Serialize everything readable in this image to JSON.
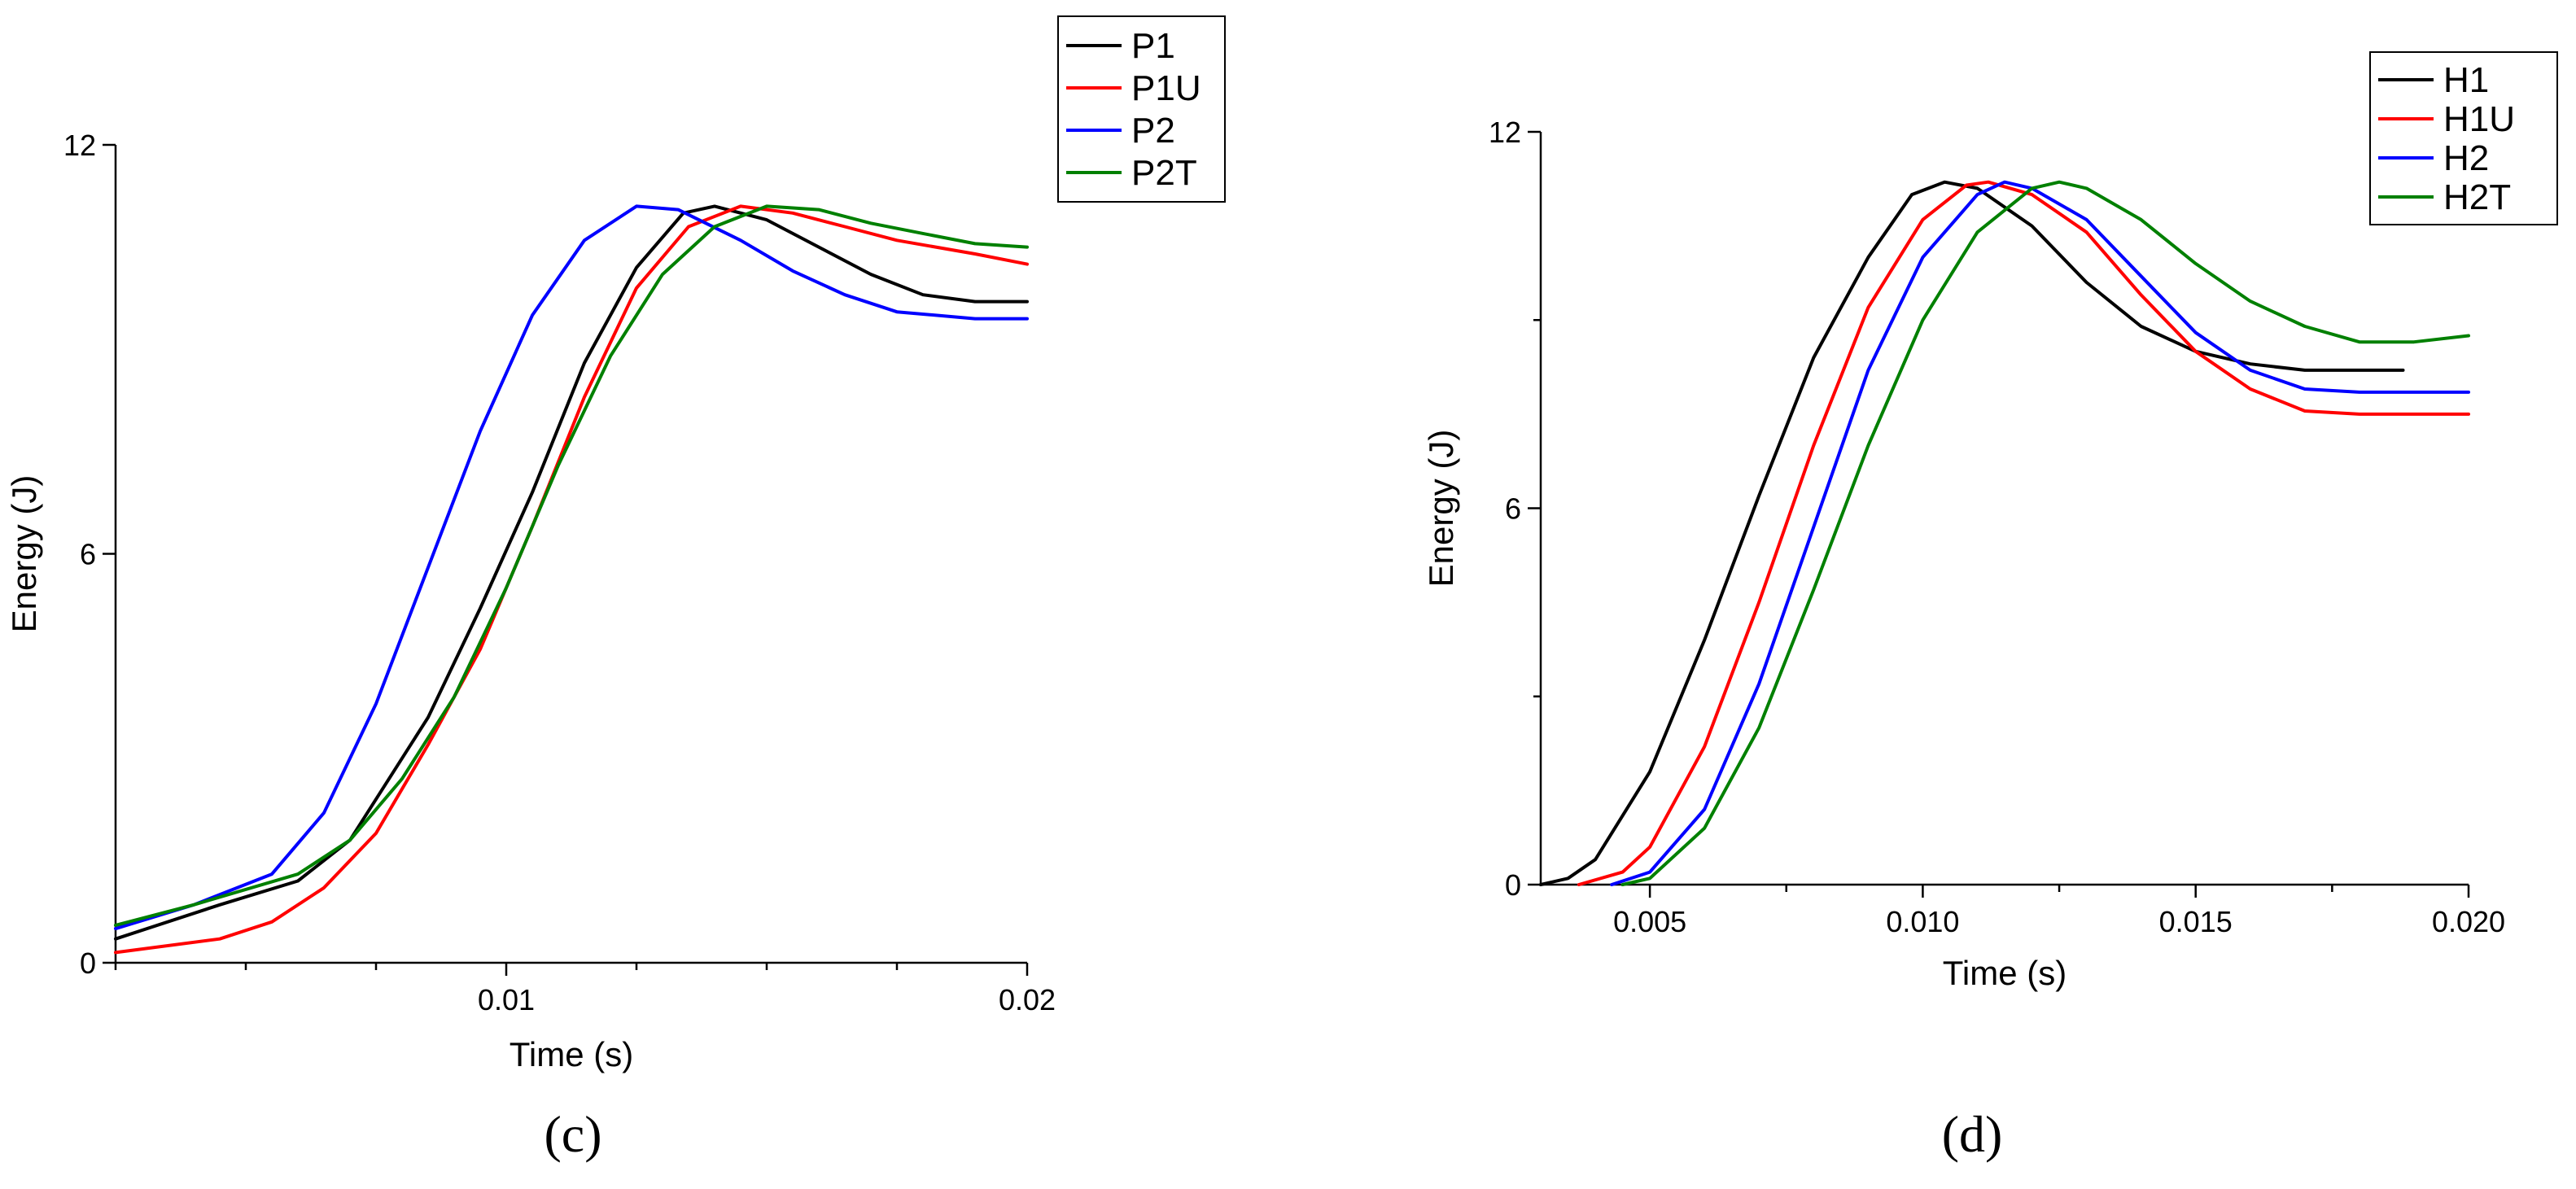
{
  "chart_data": [
    {
      "type": "line",
      "panel_label": "(c)",
      "xlabel": "Time (s)",
      "ylabel": "Energy (J)",
      "xlim": [
        0.0025,
        0.02
      ],
      "ylim": [
        0,
        12
      ],
      "x_ticks": [
        0.01,
        0.02
      ],
      "x_tick_labels": [
        "0.01",
        "0.02"
      ],
      "x_minor_ticks": [
        0.0025,
        0.005,
        0.0075,
        0.0125,
        0.015,
        0.0175
      ],
      "y_ticks": [
        0,
        6,
        12
      ],
      "y_tick_labels": [
        "0",
        "6",
        "12"
      ],
      "legend_position": "top-right, outside",
      "series": [
        {
          "name": "P1",
          "color": "#000000",
          "points": [
            [
              0.0025,
              0.35
            ],
            [
              0.0045,
              0.85
            ],
            [
              0.006,
              1.2
            ],
            [
              0.007,
              1.8
            ],
            [
              0.0085,
              3.6
            ],
            [
              0.0095,
              5.2
            ],
            [
              0.0105,
              6.9
            ],
            [
              0.0115,
              8.8
            ],
            [
              0.0125,
              10.2
            ],
            [
              0.0134,
              11.0
            ],
            [
              0.014,
              11.1
            ],
            [
              0.015,
              10.9
            ],
            [
              0.016,
              10.5
            ],
            [
              0.017,
              10.1
            ],
            [
              0.018,
              9.8
            ],
            [
              0.019,
              9.7
            ],
            [
              0.02,
              9.7
            ]
          ]
        },
        {
          "name": "P1U",
          "color": "#ff0000",
          "points": [
            [
              0.0025,
              0.15
            ],
            [
              0.0045,
              0.35
            ],
            [
              0.0055,
              0.6
            ],
            [
              0.0065,
              1.1
            ],
            [
              0.0075,
              1.9
            ],
            [
              0.0085,
              3.2
            ],
            [
              0.0095,
              4.6
            ],
            [
              0.0105,
              6.4
            ],
            [
              0.0115,
              8.3
            ],
            [
              0.0125,
              9.9
            ],
            [
              0.0135,
              10.8
            ],
            [
              0.0145,
              11.1
            ],
            [
              0.0155,
              11.0
            ],
            [
              0.0165,
              10.8
            ],
            [
              0.0175,
              10.6
            ],
            [
              0.019,
              10.4
            ],
            [
              0.02,
              10.25
            ]
          ]
        },
        {
          "name": "P2",
          "color": "#0000ff",
          "points": [
            [
              0.0025,
              0.5
            ],
            [
              0.004,
              0.85
            ],
            [
              0.0055,
              1.3
            ],
            [
              0.0065,
              2.2
            ],
            [
              0.0075,
              3.8
            ],
            [
              0.0085,
              5.8
            ],
            [
              0.0095,
              7.8
            ],
            [
              0.0105,
              9.5
            ],
            [
              0.0115,
              10.6
            ],
            [
              0.0125,
              11.1
            ],
            [
              0.0133,
              11.05
            ],
            [
              0.0145,
              10.6
            ],
            [
              0.0155,
              10.15
            ],
            [
              0.0165,
              9.8
            ],
            [
              0.0175,
              9.55
            ],
            [
              0.019,
              9.45
            ],
            [
              0.02,
              9.45
            ]
          ]
        },
        {
          "name": "P2T",
          "color": "#008000",
          "points": [
            [
              0.0025,
              0.55
            ],
            [
              0.004,
              0.85
            ],
            [
              0.006,
              1.3
            ],
            [
              0.007,
              1.8
            ],
            [
              0.008,
              2.7
            ],
            [
              0.009,
              3.9
            ],
            [
              0.01,
              5.5
            ],
            [
              0.011,
              7.3
            ],
            [
              0.012,
              8.9
            ],
            [
              0.013,
              10.1
            ],
            [
              0.014,
              10.8
            ],
            [
              0.015,
              11.1
            ],
            [
              0.016,
              11.05
            ],
            [
              0.017,
              10.85
            ],
            [
              0.018,
              10.7
            ],
            [
              0.019,
              10.55
            ],
            [
              0.02,
              10.5
            ]
          ]
        }
      ]
    },
    {
      "type": "line",
      "panel_label": "(d)",
      "xlabel": "Time (s)",
      "ylabel": "Energy (J)",
      "xlim": [
        0.003,
        0.02
      ],
      "ylim": [
        0,
        12
      ],
      "x_ticks": [
        0.005,
        0.01,
        0.015,
        0.02
      ],
      "x_tick_labels": [
        "0.005",
        "0.010",
        "0.015",
        "0.020"
      ],
      "x_minor_ticks": [
        0.0075,
        0.0125,
        0.0175
      ],
      "y_ticks": [
        0,
        6,
        12
      ],
      "y_tick_labels": [
        "0",
        "6",
        "12"
      ],
      "y_minor_ticks": [
        3,
        9
      ],
      "legend_position": "top-right",
      "series": [
        {
          "name": "H1",
          "color": "#000000",
          "points": [
            [
              0.003,
              0
            ],
            [
              0.0035,
              0.1
            ],
            [
              0.004,
              0.4
            ],
            [
              0.005,
              1.8
            ],
            [
              0.006,
              3.9
            ],
            [
              0.007,
              6.2
            ],
            [
              0.008,
              8.4
            ],
            [
              0.009,
              10.0
            ],
            [
              0.0098,
              11.0
            ],
            [
              0.0104,
              11.2
            ],
            [
              0.011,
              11.1
            ],
            [
              0.012,
              10.5
            ],
            [
              0.013,
              9.6
            ],
            [
              0.014,
              8.9
            ],
            [
              0.015,
              8.5
            ],
            [
              0.016,
              8.3
            ],
            [
              0.017,
              8.2
            ],
            [
              0.0188,
              8.2
            ]
          ]
        },
        {
          "name": "H1U",
          "color": "#ff0000",
          "points": [
            [
              0.0037,
              0
            ],
            [
              0.0045,
              0.2
            ],
            [
              0.005,
              0.6
            ],
            [
              0.006,
              2.2
            ],
            [
              0.007,
              4.5
            ],
            [
              0.008,
              7.0
            ],
            [
              0.009,
              9.2
            ],
            [
              0.01,
              10.6
            ],
            [
              0.0108,
              11.15
            ],
            [
              0.0112,
              11.2
            ],
            [
              0.012,
              11.0
            ],
            [
              0.013,
              10.4
            ],
            [
              0.014,
              9.4
            ],
            [
              0.015,
              8.5
            ],
            [
              0.016,
              7.9
            ],
            [
              0.017,
              7.55
            ],
            [
              0.018,
              7.5
            ],
            [
              0.02,
              7.5
            ]
          ]
        },
        {
          "name": "H2",
          "color": "#0000ff",
          "points": [
            [
              0.0043,
              0
            ],
            [
              0.005,
              0.2
            ],
            [
              0.006,
              1.2
            ],
            [
              0.007,
              3.2
            ],
            [
              0.008,
              5.7
            ],
            [
              0.009,
              8.2
            ],
            [
              0.01,
              10.0
            ],
            [
              0.011,
              11.0
            ],
            [
              0.0115,
              11.2
            ],
            [
              0.012,
              11.1
            ],
            [
              0.013,
              10.6
            ],
            [
              0.014,
              9.7
            ],
            [
              0.015,
              8.8
            ],
            [
              0.016,
              8.2
            ],
            [
              0.017,
              7.9
            ],
            [
              0.018,
              7.85
            ],
            [
              0.02,
              7.85
            ]
          ]
        },
        {
          "name": "H2T",
          "color": "#008000",
          "points": [
            [
              0.0045,
              0
            ],
            [
              0.005,
              0.1
            ],
            [
              0.006,
              0.9
            ],
            [
              0.007,
              2.5
            ],
            [
              0.008,
              4.7
            ],
            [
              0.009,
              7.0
            ],
            [
              0.01,
              9.0
            ],
            [
              0.011,
              10.4
            ],
            [
              0.012,
              11.1
            ],
            [
              0.0125,
              11.2
            ],
            [
              0.013,
              11.1
            ],
            [
              0.014,
              10.6
            ],
            [
              0.015,
              9.9
            ],
            [
              0.016,
              9.3
            ],
            [
              0.017,
              8.9
            ],
            [
              0.018,
              8.65
            ],
            [
              0.019,
              8.65
            ],
            [
              0.02,
              8.75
            ]
          ]
        }
      ]
    }
  ]
}
